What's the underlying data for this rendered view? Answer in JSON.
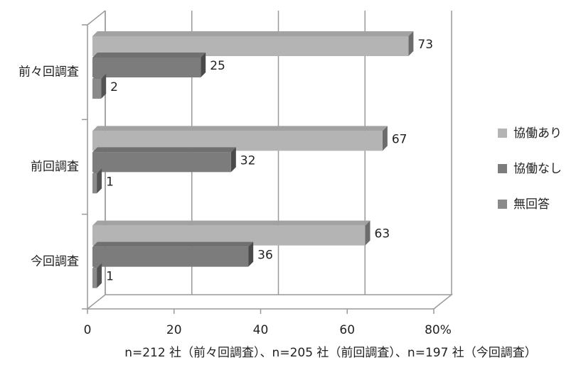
{
  "chart_data": {
    "type": "bar3d-horizontal",
    "categories": [
      "前々回調査",
      "前回調査",
      "今回調査"
    ],
    "series": [
      {
        "name": "協働あり",
        "color": "#b4b4b4",
        "values": [
          73,
          67,
          63
        ]
      },
      {
        "name": "協働なし",
        "color": "#7c7c7c",
        "values": [
          25,
          32,
          36
        ]
      },
      {
        "name": "無回答",
        "color": "#8a8a8a",
        "values": [
          2,
          1,
          1
        ]
      }
    ],
    "xlim": [
      0,
      80
    ],
    "xticks": [
      0,
      20,
      40,
      60,
      {
        "value": 80,
        "label": "80%"
      }
    ],
    "grid": true,
    "legend": "right",
    "footnote": "n=212 社（前々回調査）、n=205 社（前回調査）、n=197 社（今回調査）"
  }
}
